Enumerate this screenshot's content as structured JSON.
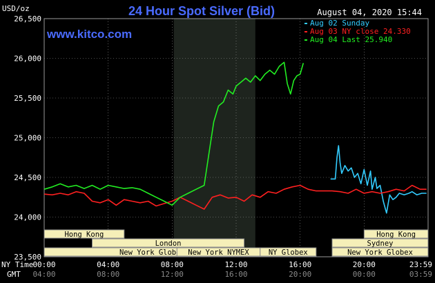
{
  "header": {
    "unit": "USD/oz",
    "title": "24 Hour Spot Silver (Bid)",
    "timestamp": "August 04, 2020 15:44",
    "watermark": "www.kitco.com"
  },
  "legend": [
    {
      "text": "Aug 02 Sunday",
      "color": "#33ccff"
    },
    {
      "text": "Aug 03 NY close 24.330",
      "color": "#ff2020"
    },
    {
      "text": "Aug 04 Last 25.940",
      "color": "#22ee22"
    }
  ],
  "colors": {
    "background": "#000000",
    "title": "#4a6bff",
    "watermark": "#4a6bff",
    "grid": "#9a9a9a",
    "text": "#ffffff",
    "session_bg": "#f5efb8",
    "session_border": "#888888",
    "shaded": "#1e241e"
  },
  "axis_footer": {
    "ny_time_label": "NY Time",
    "gmt_label": "GMT",
    "ny_ticks": [
      "00:00",
      "04:00",
      "08:00",
      "12:00",
      "16:00",
      "20:00",
      "23:59"
    ],
    "gmt_ticks": [
      "04:00",
      "08:00",
      "12:00",
      "16:00",
      "20:00",
      "00:00",
      "03:59"
    ]
  },
  "sessions": [
    {
      "name": "Hong Kong",
      "start": -4,
      "end": 5
    },
    {
      "name": "London",
      "start": 3,
      "end": 12.5
    },
    {
      "name": "New York Globex",
      "start": 0,
      "end": 13.5
    },
    {
      "name": "New York NYMEX",
      "start": 8.3,
      "end": 13.5
    },
    {
      "name": "NY Globex",
      "start": 13.5,
      "end": 17
    },
    {
      "name": "Hong Kong",
      "start": 20,
      "end": 29
    },
    {
      "name": "Sydney",
      "start": 18,
      "end": 27
    },
    {
      "name": "New York Globex",
      "start": 18,
      "end": 27
    }
  ],
  "chart_data": {
    "type": "line",
    "title": "24 Hour Spot Silver (Bid)",
    "ylabel": "USD/oz",
    "ylim": [
      23.5,
      26.5
    ],
    "xlim": [
      0,
      24
    ],
    "yticks": [
      "23,500",
      "24,000",
      "24,500",
      "25,000",
      "25,500",
      "26,000",
      "26,500"
    ],
    "shaded_range": [
      8.1,
      13.2
    ],
    "grid": true,
    "legend_position": "top-right",
    "series": [
      {
        "name": "Aug 02 Sunday",
        "color": "#33ccff",
        "x": [
          17.9,
          18.0,
          18.1,
          18.2,
          18.3,
          18.4,
          18.5,
          18.6,
          18.8,
          19.0,
          19.2,
          19.4,
          19.6,
          19.8,
          20.0,
          20.2,
          20.4,
          20.5,
          20.7,
          20.8,
          21.0,
          21.2,
          21.4,
          21.6,
          21.8,
          22.0,
          22.2,
          22.5,
          22.8,
          23.0,
          23.3,
          23.6,
          23.9
        ],
        "y": [
          24.48,
          24.48,
          24.48,
          24.48,
          24.75,
          24.9,
          24.68,
          24.55,
          24.65,
          24.58,
          24.62,
          24.5,
          24.55,
          24.42,
          24.6,
          24.4,
          24.58,
          24.35,
          24.5,
          24.36,
          24.4,
          24.2,
          24.05,
          24.28,
          24.22,
          24.25,
          24.3,
          24.28,
          24.3,
          24.32,
          24.28,
          24.3,
          24.3
        ]
      },
      {
        "name": "Aug 03 NY close 24.330",
        "color": "#ff2020",
        "x": [
          0,
          0.5,
          1.0,
          1.5,
          2.0,
          2.5,
          3.0,
          3.5,
          4.0,
          4.5,
          5.0,
          5.5,
          6.0,
          6.5,
          7.0,
          7.5,
          8.0,
          8.5,
          9.0,
          9.5,
          10.0,
          10.5,
          11.0,
          11.5,
          12.0,
          12.5,
          13.0,
          13.5,
          14.0,
          14.5,
          15.0,
          15.5,
          16.0,
          16.5,
          17.0,
          17.5,
          18.0,
          18.5,
          19.0,
          19.5,
          20.0,
          20.5,
          21.0,
          21.5,
          22.0,
          22.5,
          23.0,
          23.5,
          23.9
        ],
        "y": [
          24.29,
          24.28,
          24.3,
          24.28,
          24.32,
          24.3,
          24.2,
          24.18,
          24.22,
          24.15,
          24.22,
          24.2,
          24.18,
          24.2,
          24.14,
          24.17,
          24.2,
          24.25,
          24.2,
          24.15,
          24.1,
          24.25,
          24.28,
          24.24,
          24.25,
          24.2,
          24.28,
          24.25,
          24.32,
          24.3,
          24.35,
          24.38,
          24.4,
          24.35,
          24.33,
          24.33,
          24.33,
          24.32,
          24.3,
          24.35,
          24.3,
          24.32,
          24.3,
          24.32,
          24.35,
          24.33,
          24.4,
          24.35,
          24.35
        ]
      },
      {
        "name": "Aug 04 Last 25.940",
        "color": "#22ee22",
        "x": [
          0,
          0.5,
          1.0,
          1.5,
          2.0,
          2.5,
          3.0,
          3.5,
          4.0,
          4.5,
          5.0,
          5.5,
          6.0,
          6.5,
          7.0,
          7.5,
          8.0,
          8.5,
          9.0,
          9.5,
          10.0,
          10.3,
          10.6,
          10.9,
          11.2,
          11.5,
          11.8,
          12.0,
          12.3,
          12.6,
          12.9,
          13.2,
          13.5,
          13.8,
          14.1,
          14.4,
          14.7,
          15.0,
          15.2,
          15.4,
          15.6,
          15.8,
          16.0,
          16.2
        ],
        "y": [
          24.35,
          24.38,
          24.42,
          24.38,
          24.4,
          24.36,
          24.4,
          24.35,
          24.4,
          24.38,
          24.36,
          24.37,
          24.35,
          24.3,
          24.25,
          24.2,
          24.15,
          24.25,
          24.3,
          24.35,
          24.4,
          24.8,
          25.2,
          25.4,
          25.45,
          25.6,
          25.55,
          25.65,
          25.7,
          25.75,
          25.7,
          25.78,
          25.72,
          25.8,
          25.85,
          25.8,
          25.9,
          25.95,
          25.68,
          25.55,
          25.72,
          25.78,
          25.8,
          25.94
        ]
      }
    ]
  }
}
